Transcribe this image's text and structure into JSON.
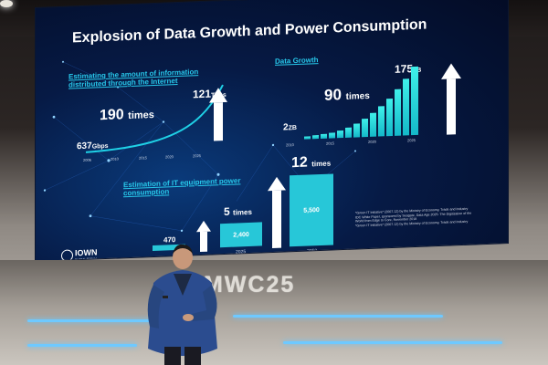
{
  "slide": {
    "title": "Explosion of Data Growth and Power Consumption",
    "left_heading": "Estimating the amount of information distributed through the Internet",
    "left_start_value": "637",
    "left_start_unit": "Gbps",
    "left_end_value": "121",
    "left_end_unit": "Tbps",
    "left_multiplier_number": "190",
    "left_multiplier_unit": "times",
    "left_years": [
      "2006",
      "2010",
      "2015",
      "2020",
      "2025"
    ],
    "right_heading": "Data Growth",
    "right_start_value": "2",
    "right_start_unit": "ZB",
    "right_end_value": "175",
    "right_end_unit": "ZB",
    "right_multiplier_number": "90",
    "right_multiplier_unit": "times",
    "right_years": [
      "2010",
      "2015",
      "2020",
      "2025"
    ],
    "bottom_heading": "Estimation of IT equipment power consumption",
    "bottom_base_value": "470",
    "bottom_mid_multiplier_number": "5",
    "bottom_mid_multiplier_unit": "times",
    "bottom_mid_value": "2,400",
    "bottom_mid_year": "2025",
    "bottom_high_multiplier_number": "12",
    "bottom_high_multiplier_unit": "times",
    "bottom_high_value": "5,500",
    "bottom_high_year": "2050",
    "footnotes": [
      "*Green IT Initiative* (2007.12) by the Ministry of Economy, Trade and Industry",
      "IDC White Paper, sponsored by Seagate, Data Age 2025: The Digitization of the",
      "World from Edge to Core, November 2018",
      "*Green IT Initiative* (2007.12) by the Ministry of Economy, Trade and Industry"
    ],
    "logo_text": "IOWN",
    "logo_subtext": "GLOBAL FORUM"
  },
  "stage": {
    "event_text": "MWC25"
  },
  "colors": {
    "accent_cyan": "#27c7ea",
    "bar_cyan": "#2fe0e6",
    "screen_dark": "#061a45",
    "stage_light": "#6ec9ff"
  }
}
